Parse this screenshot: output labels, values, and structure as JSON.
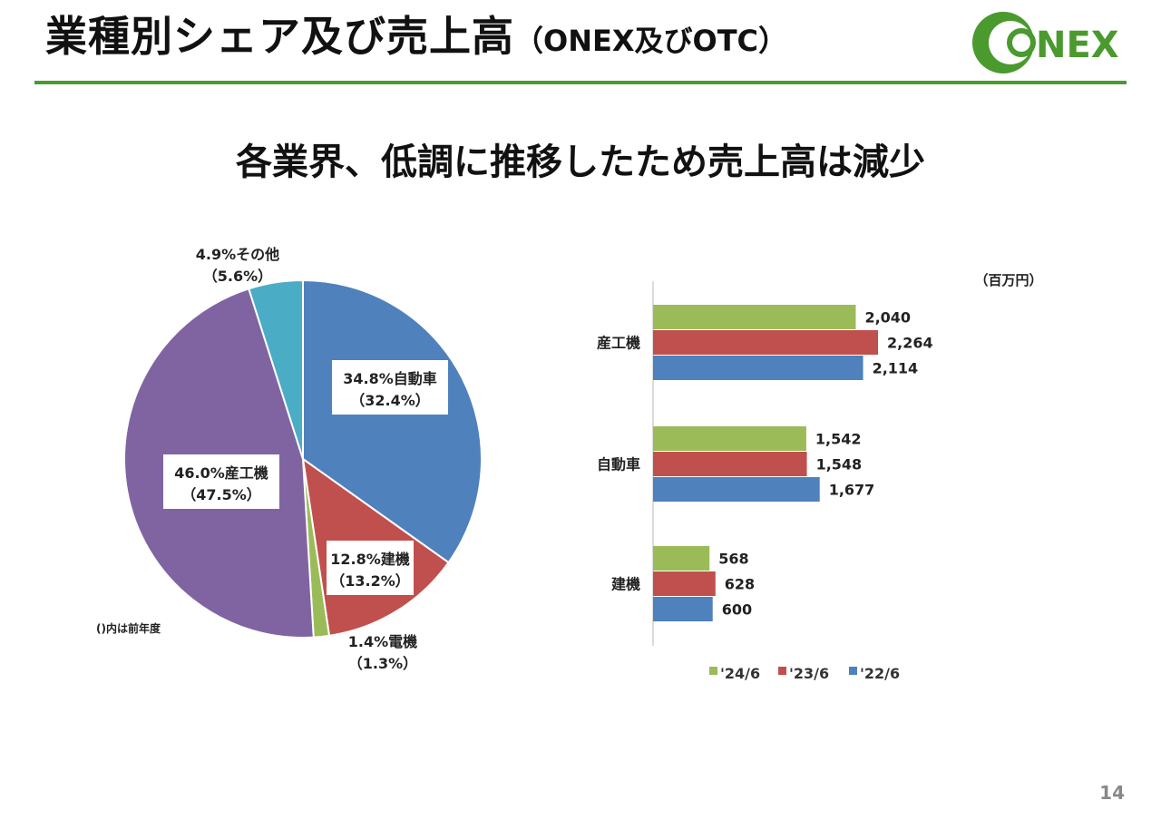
{
  "header": {
    "title_main": "業種別シェア及び売上高",
    "title_paren": "（ONEX及びOTC）",
    "logo_text": "NEX"
  },
  "subtitle": "各業界、低調に推移したため売上高は減少",
  "page_number": "14",
  "colors": {
    "rule": "#4a9a2e",
    "series_24": "#9bbb59",
    "series_23": "#c0504d",
    "series_22": "#4f81bd",
    "pie_auto": "#4f81bd",
    "pie_construction": "#c0504d",
    "pie_electric": "#9bbb59",
    "pie_industrial": "#8064a2",
    "pie_other": "#4bacc6"
  },
  "chart_data": [
    {
      "type": "pie",
      "note": "()内は前年度",
      "slices": [
        {
          "name": "自動車",
          "value": 34.8,
          "prev": 32.4,
          "label": "34.8%自動車",
          "prev_label": "（32.4%）"
        },
        {
          "name": "建機",
          "value": 12.8,
          "prev": 13.2,
          "label": "12.8%建機",
          "prev_label": "（13.2%）"
        },
        {
          "name": "電機",
          "value": 1.4,
          "prev": 1.3,
          "label": "1.4%電機",
          "prev_label": "（1.3%）"
        },
        {
          "name": "産工機",
          "value": 46.0,
          "prev": 47.5,
          "label": "46.0%産工機",
          "prev_label": "（47.5%）"
        },
        {
          "name": "その他",
          "value": 4.9,
          "prev": 5.6,
          "label": "4.9%その他",
          "prev_label": "（5.6%）"
        }
      ]
    },
    {
      "type": "bar",
      "orientation": "horizontal",
      "unit": "（百万円）",
      "categories": [
        "産工機",
        "自動車",
        "建機"
      ],
      "series": [
        {
          "name": "'24/6",
          "values": [
            2040,
            1542,
            568
          ],
          "labels": [
            "2,040",
            "1,542",
            "568"
          ]
        },
        {
          "name": "'23/6",
          "values": [
            2264,
            1548,
            628
          ],
          "labels": [
            "2,264",
            "1,548",
            "628"
          ]
        },
        {
          "name": "'22/6",
          "values": [
            2114,
            1677,
            600
          ],
          "labels": [
            "2,114",
            "1,677",
            "600"
          ]
        }
      ],
      "xlim": [
        0,
        2500
      ],
      "legend": "bottom"
    }
  ]
}
